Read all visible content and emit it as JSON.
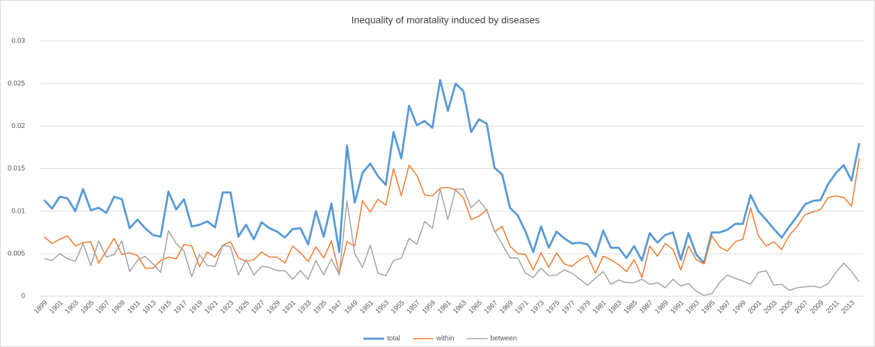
{
  "chart_data": {
    "type": "line",
    "title": "Inequality of moratality induced by diseases",
    "categories": [
      "1899",
      null,
      "1901",
      null,
      "1903",
      null,
      "1905",
      null,
      "1907",
      null,
      "1909",
      null,
      "1911",
      null,
      "1913",
      null,
      "1915",
      null,
      "1917",
      null,
      "1919",
      null,
      "1921",
      null,
      "1923",
      null,
      "1925",
      null,
      "1927",
      null,
      "1929",
      null,
      "1931",
      null,
      "1933",
      null,
      "1935",
      null,
      "1947",
      null,
      "1949",
      null,
      "1951",
      null,
      "1953",
      null,
      "1955",
      null,
      "1957",
      null,
      "1959",
      null,
      "1961",
      null,
      "1963",
      null,
      "1965",
      null,
      "1967",
      null,
      "1969",
      null,
      "1971",
      null,
      "1973",
      null,
      "1975",
      null,
      "1977",
      null,
      "1979",
      null,
      "1981",
      null,
      "1983",
      null,
      "1985",
      null,
      "1987",
      null,
      "1989",
      null,
      "1991",
      null,
      "1993",
      null,
      "1995",
      null,
      "1997",
      null,
      "1999",
      null,
      "2001",
      null,
      "2003",
      null,
      "2005",
      null,
      "2007",
      null,
      "2009",
      null,
      "2011",
      null,
      "2013",
      null
    ],
    "series": [
      {
        "name": "total",
        "color": "#5b9bd5",
        "values": [
          0.0113,
          0.0103,
          0.0117,
          0.0115,
          0.01,
          0.0126,
          0.0101,
          0.0104,
          0.0098,
          0.0117,
          0.0114,
          0.008,
          0.009,
          0.008,
          0.0072,
          0.007,
          0.0123,
          0.0102,
          0.0114,
          0.0082,
          0.0084,
          0.0088,
          0.0081,
          0.0122,
          0.0122,
          0.007,
          0.0084,
          0.0067,
          0.0087,
          0.008,
          0.0076,
          0.0069,
          0.0079,
          0.008,
          0.0061,
          0.01,
          0.007,
          0.0109,
          0.0052,
          0.0177,
          0.011,
          0.0145,
          0.0156,
          0.0141,
          0.0131,
          0.0193,
          0.0162,
          0.0224,
          0.0201,
          0.0206,
          0.0198,
          0.0254,
          0.0218,
          0.025,
          0.0241,
          0.0193,
          0.0208,
          0.0203,
          0.0151,
          0.0143,
          0.0104,
          0.0095,
          0.0076,
          0.0052,
          0.0082,
          0.0057,
          0.0076,
          0.0068,
          0.0062,
          0.0063,
          0.0061,
          0.0047,
          0.0077,
          0.0057,
          0.0057,
          0.0045,
          0.0059,
          0.0042,
          0.0074,
          0.0063,
          0.0072,
          0.0075,
          0.0043,
          0.0074,
          0.0049,
          0.0039,
          0.0075,
          0.0075,
          0.0078,
          0.0085,
          0.0085,
          0.0119,
          0.01,
          0.009,
          0.0079,
          0.0069,
          0.0082,
          0.0094,
          0.0108,
          0.0112,
          0.0113,
          0.0132,
          0.0145,
          0.0154,
          0.0136,
          0.018
        ]
      },
      {
        "name": "within",
        "color": "#ed7d31",
        "values": [
          0.007,
          0.0062,
          0.0067,
          0.0071,
          0.0059,
          0.0063,
          0.0064,
          0.0039,
          0.0053,
          0.0068,
          0.0049,
          0.0051,
          0.0048,
          0.0033,
          0.0033,
          0.0042,
          0.0046,
          0.0044,
          0.0061,
          0.0059,
          0.0035,
          0.0052,
          0.0046,
          0.006,
          0.0064,
          0.0045,
          0.0041,
          0.0043,
          0.0052,
          0.0046,
          0.0046,
          0.0039,
          0.0059,
          0.0051,
          0.0041,
          0.0058,
          0.0045,
          0.0065,
          0.0027,
          0.0064,
          0.0059,
          0.0112,
          0.0099,
          0.0114,
          0.0107,
          0.015,
          0.0118,
          0.0154,
          0.0142,
          0.0119,
          0.0118,
          0.0127,
          0.0128,
          0.0125,
          0.0116,
          0.009,
          0.0094,
          0.0102,
          0.0076,
          0.0082,
          0.0059,
          0.005,
          0.0049,
          0.0031,
          0.0051,
          0.0034,
          0.0051,
          0.0038,
          0.0035,
          0.0043,
          0.0048,
          0.0027,
          0.0047,
          0.0043,
          0.0037,
          0.0029,
          0.0043,
          0.0022,
          0.0059,
          0.0047,
          0.0062,
          0.0055,
          0.0031,
          0.0059,
          0.0043,
          0.0038,
          0.0071,
          0.0058,
          0.0053,
          0.0064,
          0.0067,
          0.0104,
          0.0071,
          0.0059,
          0.0064,
          0.0055,
          0.0072,
          0.0082,
          0.0096,
          0.0099,
          0.0102,
          0.0116,
          0.0118,
          0.0116,
          0.0106,
          0.0162
        ]
      },
      {
        "name": "between",
        "color": "#a5a5a5",
        "values": [
          0.0044,
          0.0042,
          0.005,
          0.0044,
          0.0041,
          0.0062,
          0.0036,
          0.0065,
          0.0046,
          0.0049,
          0.0065,
          0.0029,
          0.0042,
          0.0047,
          0.0038,
          0.0028,
          0.0077,
          0.0062,
          0.0053,
          0.0023,
          0.0049,
          0.0036,
          0.0035,
          0.006,
          0.0058,
          0.0025,
          0.0043,
          0.0025,
          0.0035,
          0.0034,
          0.003,
          0.003,
          0.002,
          0.003,
          0.002,
          0.0042,
          0.0025,
          0.0044,
          0.0025,
          0.0112,
          0.005,
          0.0034,
          0.006,
          0.0027,
          0.0024,
          0.0042,
          0.0045,
          0.0068,
          0.0061,
          0.0088,
          0.008,
          0.0126,
          0.009,
          0.0126,
          0.0126,
          0.0104,
          0.0113,
          0.0101,
          0.0077,
          0.0061,
          0.0045,
          0.0045,
          0.0027,
          0.0022,
          0.0033,
          0.0024,
          0.0025,
          0.0031,
          0.0027,
          0.002,
          0.0013,
          0.0021,
          0.0029,
          0.0014,
          0.0019,
          0.0016,
          0.0016,
          0.002,
          0.0014,
          0.0016,
          0.001,
          0.002,
          0.0012,
          0.0015,
          0.0006,
          0.0001,
          0.0003,
          0.0016,
          0.0025,
          0.0021,
          0.0018,
          0.0014,
          0.0028,
          0.003,
          0.0013,
          0.0014,
          0.0007,
          0.001,
          0.0011,
          0.0012,
          0.001,
          0.0015,
          0.0028,
          0.0039,
          0.0029,
          0.0017
        ]
      }
    ],
    "ylim": [
      0,
      0.03
    ],
    "yticks": [
      0,
      0.005,
      0.01,
      0.015,
      0.02,
      0.025,
      0.03
    ],
    "grid": true,
    "legend": "bottom"
  }
}
